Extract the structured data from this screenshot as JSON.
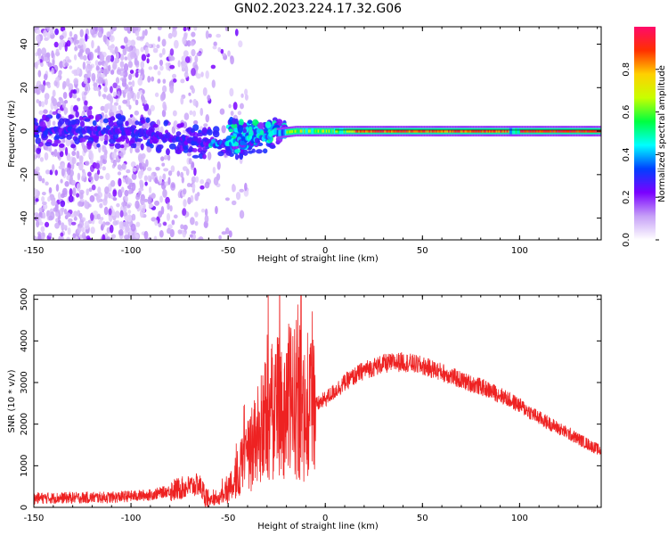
{
  "title": "GN02.2023.224.17.32.G06",
  "chart_data": [
    {
      "type": "heatmap",
      "xlabel": "Height of straight line (km)",
      "ylabel": "Frequency (Hz)",
      "xlim": [
        -150,
        142
      ],
      "ylim": [
        -50,
        48
      ],
      "xticks": [
        "-150",
        "-100",
        "-50",
        "0",
        "50",
        "100"
      ],
      "yticks": [
        "-40",
        "-20",
        "0",
        "20",
        "40"
      ],
      "colorbar": {
        "label": "Normalized spectral amplitude",
        "range": [
          0,
          1
        ],
        "ticks": [
          "0.0",
          "0.2",
          "0.4",
          "0.6",
          "0.8"
        ],
        "colors": [
          "#ffffff",
          "#c6a0f7",
          "#7a00ff",
          "#0040ff",
          "#00ffff",
          "#00ff40",
          "#c8ff00",
          "#ffd000",
          "#ff3000",
          "#ff0a6a"
        ]
      },
      "ridge": [
        {
          "x": -150,
          "y": 0
        },
        {
          "x": -100,
          "y": 0
        },
        {
          "x": -80,
          "y": -3
        },
        {
          "x": -65,
          "y": -5
        },
        {
          "x": -55,
          "y": -6
        },
        {
          "x": -45,
          "y": -5
        },
        {
          "x": -35,
          "y": -3
        },
        {
          "x": -25,
          "y": -1
        },
        {
          "x": -15,
          "y": 0
        },
        {
          "x": 0,
          "y": 0
        },
        {
          "x": 50,
          "y": 0
        },
        {
          "x": 100,
          "y": 0
        },
        {
          "x": 142,
          "y": 0
        }
      ]
    },
    {
      "type": "line",
      "xlabel": "Height of straight line (km)",
      "ylabel": "SNR (10 * v/v)",
      "xlim": [
        -150,
        142
      ],
      "ylim": [
        0,
        5100
      ],
      "xticks": [
        "-150",
        "-100",
        "-50",
        "0",
        "50",
        "100"
      ],
      "yticks": [
        "0",
        "1000",
        "2000",
        "3000",
        "4000",
        "5000"
      ],
      "color": "#ee2222",
      "series": [
        {
          "x": [
            -150,
            -130,
            -110,
            -90,
            -75,
            -65,
            -60,
            -55,
            -50,
            -45,
            -40,
            -35,
            -30,
            -25,
            -20,
            -15,
            -10,
            -5,
            0,
            10,
            20,
            30,
            40,
            50,
            60,
            70,
            80,
            90,
            100,
            110,
            120,
            130,
            142
          ],
          "values": [
            220,
            230,
            240,
            300,
            450,
            550,
            150,
            200,
            400,
            800,
            1200,
            1700,
            2100,
            2400,
            2500,
            2600,
            2400,
            2450,
            2600,
            3000,
            3300,
            3450,
            3500,
            3400,
            3250,
            3050,
            2900,
            2700,
            2450,
            2150,
            1900,
            1650,
            1350
          ]
        }
      ]
    }
  ]
}
